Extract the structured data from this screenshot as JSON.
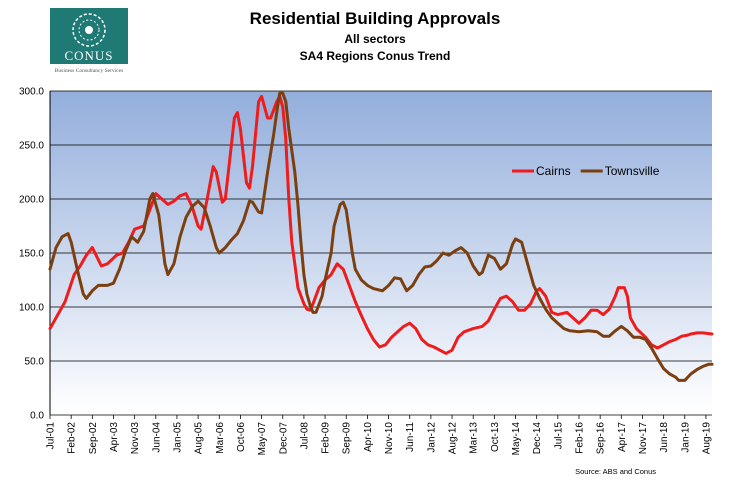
{
  "logo": {
    "word": "CONUS",
    "tagline": "Business Consultancy Services",
    "color": "#1f7a76"
  },
  "chart_data": {
    "type": "line",
    "title": "Residential Building Approvals",
    "subtitle_1": "All sectors",
    "subtitle_2": "SA4 Regions Conus Trend",
    "source": "Source: ABS and Conus",
    "ylim": [
      0,
      300
    ],
    "yticks": [
      0,
      50,
      100,
      150,
      200,
      250,
      300
    ],
    "ytick_labels": [
      "0.0",
      "50.0",
      "100.0",
      "150.0",
      "200.0",
      "250.0",
      "300.0"
    ],
    "xlim": [
      0,
      219
    ],
    "xticks": [
      {
        "i": 0,
        "label": "Jul-01"
      },
      {
        "i": 7,
        "label": "Feb-02"
      },
      {
        "i": 14,
        "label": "Sep-02"
      },
      {
        "i": 21,
        "label": "Apr-03"
      },
      {
        "i": 28,
        "label": "Nov-03"
      },
      {
        "i": 35,
        "label": "Jun-04"
      },
      {
        "i": 42,
        "label": "Jan-05"
      },
      {
        "i": 49,
        "label": "Aug-05"
      },
      {
        "i": 56,
        "label": "Mar-06"
      },
      {
        "i": 63,
        "label": "Oct-06"
      },
      {
        "i": 70,
        "label": "May-07"
      },
      {
        "i": 77,
        "label": "Dec-07"
      },
      {
        "i": 84,
        "label": "Jul-08"
      },
      {
        "i": 91,
        "label": "Feb-09"
      },
      {
        "i": 98,
        "label": "Sep-09"
      },
      {
        "i": 105,
        "label": "Apr-10"
      },
      {
        "i": 112,
        "label": "Nov-10"
      },
      {
        "i": 119,
        "label": "Jun-11"
      },
      {
        "i": 126,
        "label": "Jan-12"
      },
      {
        "i": 133,
        "label": "Aug-12"
      },
      {
        "i": 140,
        "label": "Mar-13"
      },
      {
        "i": 147,
        "label": "Oct-13"
      },
      {
        "i": 154,
        "label": "May-14"
      },
      {
        "i": 161,
        "label": "Dec-14"
      },
      {
        "i": 168,
        "label": "Jul-15"
      },
      {
        "i": 175,
        "label": "Feb-16"
      },
      {
        "i": 182,
        "label": "Sep-16"
      },
      {
        "i": 189,
        "label": "Apr-17"
      },
      {
        "i": 196,
        "label": "Nov-17"
      },
      {
        "i": 203,
        "label": "Jun-18"
      },
      {
        "i": 210,
        "label": "Jan-19"
      },
      {
        "i": 217,
        "label": "Aug-19"
      }
    ],
    "grid": true,
    "legend_position": "right",
    "series": [
      {
        "name": "Cairns",
        "color": "#ee1c1c",
        "points": [
          [
            0,
            80
          ],
          [
            3,
            95
          ],
          [
            5,
            105
          ],
          [
            8,
            130
          ],
          [
            10,
            138
          ],
          [
            12,
            148
          ],
          [
            14,
            155
          ],
          [
            17,
            138
          ],
          [
            19,
            140
          ],
          [
            22,
            148
          ],
          [
            24,
            150
          ],
          [
            26,
            160
          ],
          [
            28,
            172
          ],
          [
            31,
            175
          ],
          [
            33,
            190
          ],
          [
            35,
            205
          ],
          [
            37,
            200
          ],
          [
            39,
            195
          ],
          [
            41,
            198
          ],
          [
            43,
            203
          ],
          [
            45,
            205
          ],
          [
            47,
            193
          ],
          [
            49,
            175
          ],
          [
            50,
            172
          ],
          [
            52,
            200
          ],
          [
            54,
            230
          ],
          [
            55,
            225
          ],
          [
            57,
            197
          ],
          [
            58,
            200
          ],
          [
            60,
            250
          ],
          [
            61,
            275
          ],
          [
            62,
            280
          ],
          [
            63,
            265
          ],
          [
            65,
            215
          ],
          [
            66,
            210
          ],
          [
            67,
            230
          ],
          [
            69,
            290
          ],
          [
            70,
            295
          ],
          [
            72,
            275
          ],
          [
            73,
            275
          ],
          [
            75,
            290
          ],
          [
            76,
            295
          ],
          [
            77,
            285
          ],
          [
            78,
            255
          ],
          [
            79,
            200
          ],
          [
            80,
            160
          ],
          [
            81,
            140
          ],
          [
            82,
            118
          ],
          [
            84,
            103
          ],
          [
            85,
            98
          ],
          [
            86,
            97
          ],
          [
            87,
            103
          ],
          [
            89,
            118
          ],
          [
            91,
            125
          ],
          [
            93,
            130
          ],
          [
            95,
            140
          ],
          [
            97,
            135
          ],
          [
            99,
            120
          ],
          [
            101,
            105
          ],
          [
            103,
            92
          ],
          [
            105,
            80
          ],
          [
            107,
            70
          ],
          [
            109,
            63
          ],
          [
            111,
            65
          ],
          [
            113,
            72
          ],
          [
            115,
            77
          ],
          [
            117,
            82
          ],
          [
            119,
            85
          ],
          [
            121,
            80
          ],
          [
            123,
            70
          ],
          [
            125,
            65
          ],
          [
            127,
            63
          ],
          [
            129,
            60
          ],
          [
            131,
            57
          ],
          [
            133,
            60
          ],
          [
            135,
            72
          ],
          [
            137,
            77
          ],
          [
            140,
            80
          ],
          [
            143,
            82
          ],
          [
            145,
            87
          ],
          [
            147,
            98
          ],
          [
            149,
            108
          ],
          [
            151,
            110
          ],
          [
            153,
            105
          ],
          [
            155,
            97
          ],
          [
            157,
            97
          ],
          [
            159,
            103
          ],
          [
            161,
            115
          ],
          [
            162,
            117
          ],
          [
            164,
            110
          ],
          [
            166,
            95
          ],
          [
            168,
            93
          ],
          [
            171,
            95
          ],
          [
            173,
            90
          ],
          [
            175,
            85
          ],
          [
            177,
            90
          ],
          [
            179,
            97
          ],
          [
            181,
            97
          ],
          [
            183,
            93
          ],
          [
            185,
            98
          ],
          [
            187,
            110
          ],
          [
            188,
            118
          ],
          [
            190,
            118
          ],
          [
            191,
            110
          ],
          [
            192,
            90
          ],
          [
            194,
            80
          ],
          [
            197,
            72
          ],
          [
            199,
            65
          ],
          [
            201,
            62
          ],
          [
            203,
            65
          ],
          [
            205,
            68
          ],
          [
            207,
            70
          ],
          [
            209,
            73
          ],
          [
            211,
            74
          ],
          [
            212,
            75
          ],
          [
            214,
            76
          ],
          [
            216,
            76
          ],
          [
            219,
            75
          ]
        ]
      },
      {
        "name": "Townsville",
        "color": "#7b3f10",
        "points": [
          [
            0,
            135
          ],
          [
            2,
            155
          ],
          [
            4,
            165
          ],
          [
            6,
            168
          ],
          [
            7,
            160
          ],
          [
            9,
            135
          ],
          [
            11,
            112
          ],
          [
            12,
            108
          ],
          [
            14,
            115
          ],
          [
            16,
            120
          ],
          [
            19,
            120
          ],
          [
            21,
            122
          ],
          [
            23,
            135
          ],
          [
            25,
            152
          ],
          [
            27,
            165
          ],
          [
            29,
            160
          ],
          [
            31,
            170
          ],
          [
            33,
            200
          ],
          [
            34,
            205
          ],
          [
            36,
            185
          ],
          [
            38,
            140
          ],
          [
            39,
            130
          ],
          [
            41,
            140
          ],
          [
            43,
            165
          ],
          [
            45,
            183
          ],
          [
            47,
            193
          ],
          [
            49,
            198
          ],
          [
            51,
            192
          ],
          [
            53,
            175
          ],
          [
            55,
            155
          ],
          [
            56,
            150
          ],
          [
            58,
            155
          ],
          [
            60,
            162
          ],
          [
            62,
            168
          ],
          [
            64,
            180
          ],
          [
            66,
            198
          ],
          [
            67,
            197
          ],
          [
            69,
            188
          ],
          [
            70,
            187
          ],
          [
            72,
            225
          ],
          [
            74,
            260
          ],
          [
            75,
            280
          ],
          [
            76,
            298
          ],
          [
            77,
            298
          ],
          [
            78,
            290
          ],
          [
            79,
            265
          ],
          [
            80,
            245
          ],
          [
            81,
            225
          ],
          [
            82,
            195
          ],
          [
            83,
            160
          ],
          [
            84,
            130
          ],
          [
            85,
            112
          ],
          [
            86,
            102
          ],
          [
            87,
            95
          ],
          [
            88,
            95
          ],
          [
            90,
            110
          ],
          [
            91,
            125
          ],
          [
            93,
            150
          ],
          [
            94,
            175
          ],
          [
            96,
            195
          ],
          [
            97,
            197
          ],
          [
            98,
            190
          ],
          [
            99,
            170
          ],
          [
            100,
            150
          ],
          [
            101,
            135
          ],
          [
            103,
            125
          ],
          [
            105,
            120
          ],
          [
            107,
            117
          ],
          [
            110,
            115
          ],
          [
            112,
            120
          ],
          [
            114,
            127
          ],
          [
            116,
            126
          ],
          [
            118,
            115
          ],
          [
            120,
            120
          ],
          [
            122,
            130
          ],
          [
            124,
            137
          ],
          [
            126,
            138
          ],
          [
            128,
            143
          ],
          [
            130,
            150
          ],
          [
            132,
            148
          ],
          [
            134,
            152
          ],
          [
            136,
            155
          ],
          [
            138,
            150
          ],
          [
            140,
            138
          ],
          [
            142,
            130
          ],
          [
            143,
            132
          ],
          [
            145,
            148
          ],
          [
            147,
            145
          ],
          [
            149,
            135
          ],
          [
            151,
            140
          ],
          [
            153,
            158
          ],
          [
            154,
            163
          ],
          [
            156,
            160
          ],
          [
            158,
            140
          ],
          [
            160,
            120
          ],
          [
            162,
            108
          ],
          [
            164,
            98
          ],
          [
            166,
            90
          ],
          [
            168,
            85
          ],
          [
            170,
            80
          ],
          [
            172,
            78
          ],
          [
            175,
            77
          ],
          [
            178,
            78
          ],
          [
            181,
            77
          ],
          [
            183,
            73
          ],
          [
            185,
            73
          ],
          [
            187,
            78
          ],
          [
            189,
            82
          ],
          [
            191,
            78
          ],
          [
            193,
            72
          ],
          [
            195,
            72
          ],
          [
            197,
            70
          ],
          [
            199,
            62
          ],
          [
            201,
            52
          ],
          [
            203,
            43
          ],
          [
            205,
            38
          ],
          [
            207,
            35
          ],
          [
            208,
            32
          ],
          [
            210,
            32
          ],
          [
            212,
            38
          ],
          [
            214,
            42
          ],
          [
            216,
            45
          ],
          [
            218,
            47
          ],
          [
            219,
            47
          ]
        ]
      }
    ]
  }
}
